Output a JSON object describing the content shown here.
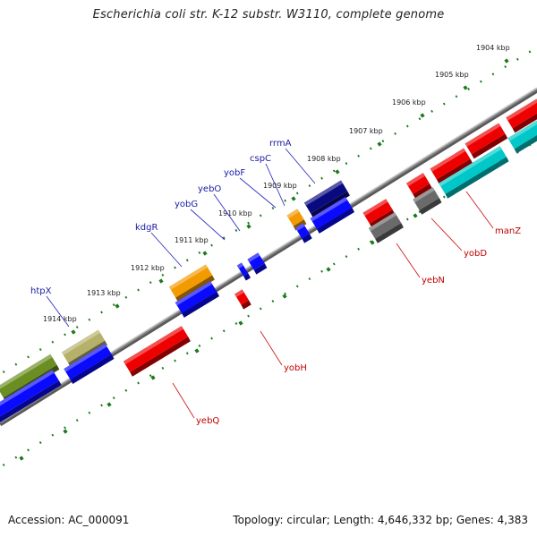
{
  "title": "Escherichia coli str. K-12 substr. W3110, complete genome",
  "footer": {
    "accession": "Accession: AC_000091",
    "summary": "Topology: circular; Length: 4,646,332 bp; Genes: 4,383"
  },
  "scale": {
    "ticks": [
      "1904 kbp",
      "1905 kbp",
      "1906 kbp",
      "1907 kbp",
      "1908 kbp",
      "1909 kbp",
      "1910 kbp",
      "1911 kbp",
      "1912 kbp",
      "1913 kbp",
      "1914 kbp"
    ]
  },
  "colors": {
    "forward_label": "#1a1aa6",
    "reverse_label": "#c00000",
    "backbone": "#8a8a8a",
    "ticks": "#1c7a1c",
    "blue": "#0a0aff",
    "red": "#ee0000",
    "orange": "#f29a00",
    "olive": "#6b8e23",
    "khaki": "#b5b06a",
    "navy": "#0a0a80",
    "gray": "#6a6a6a",
    "cyan": "#00c8c8"
  },
  "genes_forward": [
    {
      "name": "rrmA"
    },
    {
      "name": "cspC"
    },
    {
      "name": "yobF"
    },
    {
      "name": "yebO"
    },
    {
      "name": "yobG"
    },
    {
      "name": "kdgR"
    },
    {
      "name": "htpX"
    }
  ],
  "genes_reverse": [
    {
      "name": "manZ"
    },
    {
      "name": "yobD"
    },
    {
      "name": "yebN"
    },
    {
      "name": "yobH"
    },
    {
      "name": "yebQ"
    }
  ]
}
